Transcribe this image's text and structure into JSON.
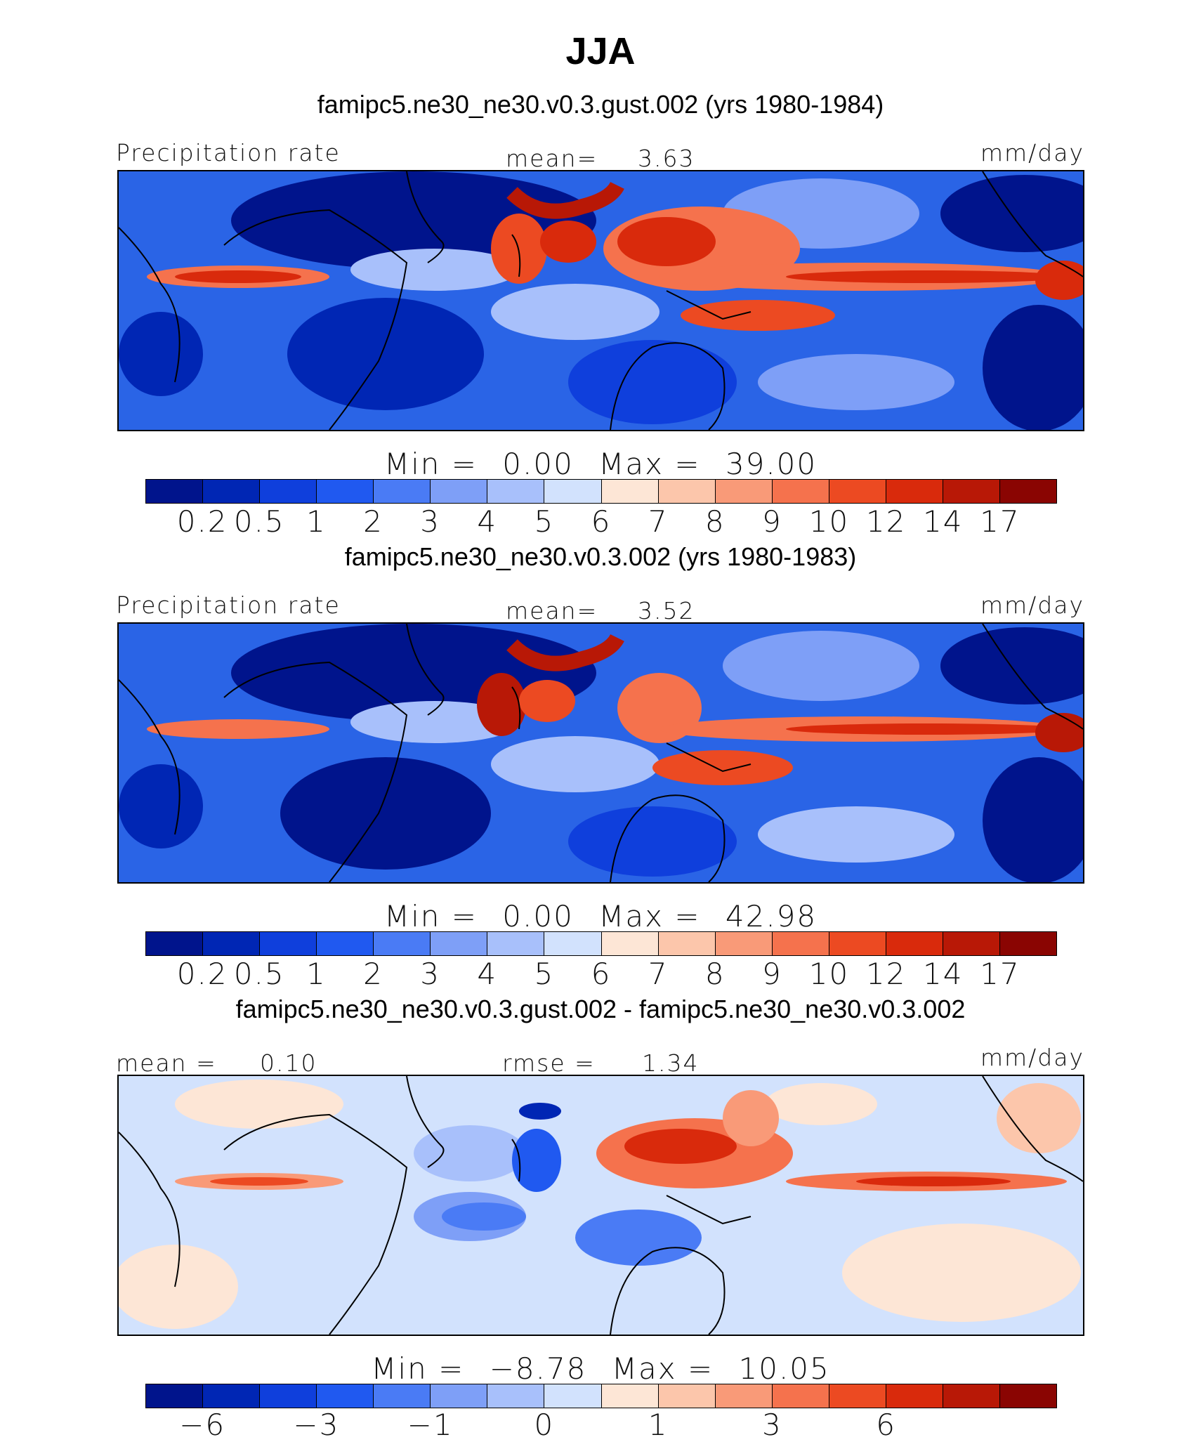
{
  "title": "JJA",
  "panels": [
    {
      "case": "famipc5.ne30_ne30.v0.3.gust.002 (yrs 1980-1984)",
      "left_label": "Precipitation rate",
      "mid_label": "mean=",
      "mid_value": "3.63",
      "units": "mm/day",
      "min_label": "Min =",
      "min_value": "0.00",
      "max_label": "Max =",
      "max_value": "39.00"
    },
    {
      "case": "famipc5.ne30_ne30.v0.3.002 (yrs 1980-1983)",
      "left_label": "Precipitation rate",
      "mid_label": "mean=",
      "mid_value": "3.52",
      "units": "mm/day",
      "min_label": "Min =",
      "min_value": "0.00",
      "max_label": "Max =",
      "max_value": "42.98"
    },
    {
      "case": "famipc5.ne30_ne30.v0.3.gust.002 - famipc5.ne30_ne30.v0.3.002",
      "left_label": "mean =",
      "left_value": "0.10",
      "mid_label": "rmse =",
      "mid_value": "1.34",
      "units": "mm/day",
      "min_label": "Min =",
      "min_value": "−8.78",
      "max_label": "Max =",
      "max_value": "10.05"
    }
  ],
  "colorbar_abs": {
    "colors": [
      "#00148c",
      "#0026b4",
      "#0f3fdc",
      "#2059f0",
      "#4a7bf5",
      "#7e9ff7",
      "#a8c0fb",
      "#d2e2fd",
      "#fde6d6",
      "#fcc6ab",
      "#f99a78",
      "#f5724d",
      "#ec4a22",
      "#d92a0c",
      "#b81806",
      "#8a0502"
    ],
    "labels": [
      "0.2",
      "0.5",
      "1",
      "2",
      "3",
      "4",
      "5",
      "6",
      "7",
      "8",
      "9",
      "10",
      "12",
      "14",
      "17"
    ]
  },
  "colorbar_diff": {
    "colors": [
      "#00148c",
      "#0026b4",
      "#0f3fdc",
      "#2059f0",
      "#4a7bf5",
      "#7e9ff7",
      "#a8c0fb",
      "#d2e2fd",
      "#fde6d6",
      "#fcc6ab",
      "#f99a78",
      "#f5724d",
      "#ec4a22",
      "#d92a0c",
      "#b81806",
      "#8a0502"
    ],
    "labels": [
      "−6",
      "−3",
      "−1",
      "0",
      "1",
      "3",
      "6"
    ]
  }
}
